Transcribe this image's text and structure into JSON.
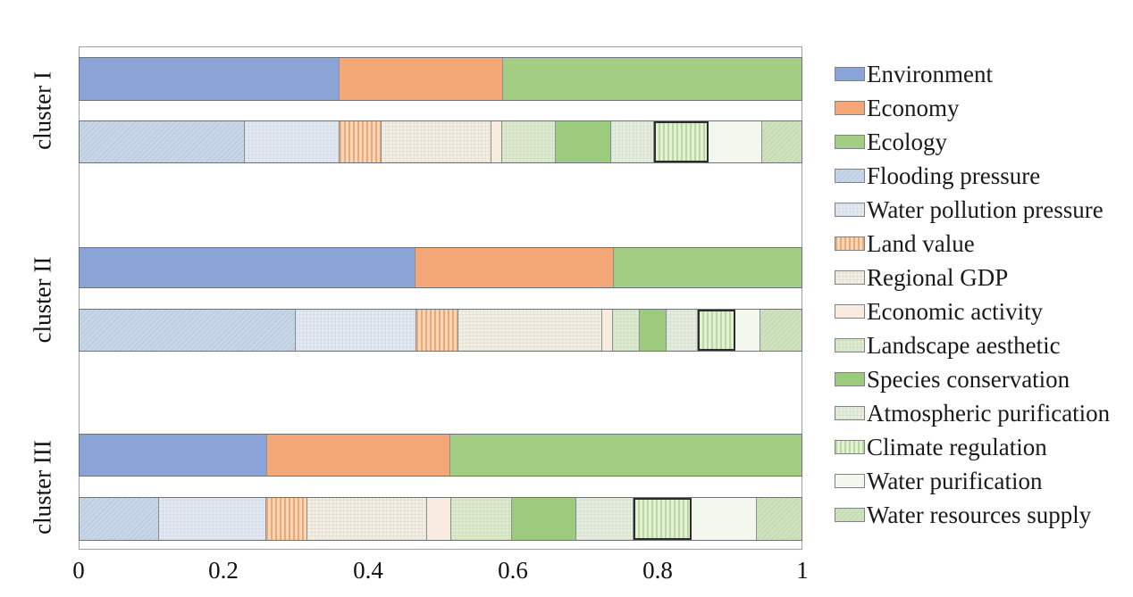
{
  "chart_data": {
    "type": "bar",
    "orientation": "horizontal",
    "stacked": true,
    "title": "",
    "xlabel": "",
    "ylabel": "",
    "xlim": [
      0,
      1
    ],
    "x_ticks": [
      "0",
      "0.2",
      "0.4",
      "0.6",
      "0.8",
      "1"
    ],
    "grid": false,
    "legend_position": "right",
    "legend": [
      {
        "key": "environment",
        "label": "Environment"
      },
      {
        "key": "economy",
        "label": "Economy"
      },
      {
        "key": "ecology",
        "label": "Ecology"
      },
      {
        "key": "flooding_pressure",
        "label": "Flooding pressure"
      },
      {
        "key": "water_pollution_pressure",
        "label": "Water pollution pressure"
      },
      {
        "key": "land_value",
        "label": "Land value"
      },
      {
        "key": "regional_gdp",
        "label": "Regional GDP"
      },
      {
        "key": "economic_activity",
        "label": "Economic activity"
      },
      {
        "key": "landscape_aesthetic",
        "label": "Landscape aesthetic"
      },
      {
        "key": "species_conservation",
        "label": "Species conservation"
      },
      {
        "key": "atmospheric_purification",
        "label": "Atmospheric purification"
      },
      {
        "key": "climate_regulation",
        "label": "Climate regulation"
      },
      {
        "key": "water_purification",
        "label": "Water purification"
      },
      {
        "key": "water_resources_supply",
        "label": "Water resources supply"
      }
    ],
    "styles": {
      "environment": {
        "fill": "#8ba4d7",
        "pattern": "solid"
      },
      "economy": {
        "fill": "#f4a878",
        "pattern": "solid"
      },
      "ecology": {
        "fill": "#a3cd83",
        "pattern": "solid"
      },
      "flooding_pressure": {
        "fill": "#c8d6e8",
        "pattern": "diag",
        "pattern_color": "#b7c9e0"
      },
      "water_pollution_pressure": {
        "fill": "#e5eaf1",
        "pattern": "grid",
        "pattern_color": "#d5ddea"
      },
      "land_value": {
        "fill": "#f9d6b6",
        "pattern": "vstripe",
        "pattern_color": "#eca879"
      },
      "regional_gdp": {
        "fill": "#f3f0e7",
        "pattern": "grid",
        "pattern_color": "#e6e1d2"
      },
      "economic_activity": {
        "fill": "#f9ebdf",
        "pattern": "solid"
      },
      "landscape_aesthetic": {
        "fill": "#dfead3",
        "pattern": "grid",
        "pattern_color": "#cfe0bf"
      },
      "species_conservation": {
        "fill": "#9ccb7e",
        "pattern": "solid"
      },
      "atmospheric_purification": {
        "fill": "#e7eee1",
        "pattern": "grid",
        "pattern_color": "#d7e3cf"
      },
      "climate_regulation": {
        "fill": "#e3f0d5",
        "pattern": "vstripe",
        "pattern_color": "#b8d89e",
        "highlighted": true
      },
      "water_purification": {
        "fill": "#f3f7ed",
        "pattern": "solid"
      },
      "water_resources_supply": {
        "fill": "#cfe1bf",
        "pattern": "diag",
        "pattern_color": "#c0d7ac"
      }
    },
    "clusters": [
      {
        "label": "cluster I",
        "dimension_bar": [
          {
            "key": "environment",
            "value": 0.36
          },
          {
            "key": "economy",
            "value": 0.227
          },
          {
            "key": "ecology",
            "value": 0.413
          }
        ],
        "indicator_bar": [
          {
            "key": "flooding_pressure",
            "value": 0.229
          },
          {
            "key": "water_pollution_pressure",
            "value": 0.131
          },
          {
            "key": "land_value",
            "value": 0.058
          },
          {
            "key": "regional_gdp",
            "value": 0.152
          },
          {
            "key": "economic_activity",
            "value": 0.016
          },
          {
            "key": "landscape_aesthetic",
            "value": 0.074
          },
          {
            "key": "species_conservation",
            "value": 0.077
          },
          {
            "key": "atmospheric_purification",
            "value": 0.059
          },
          {
            "key": "climate_regulation",
            "value": 0.075
          },
          {
            "key": "water_purification",
            "value": 0.075
          },
          {
            "key": "water_resources_supply",
            "value": 0.054
          }
        ]
      },
      {
        "label": "cluster II",
        "dimension_bar": [
          {
            "key": "environment",
            "value": 0.465
          },
          {
            "key": "economy",
            "value": 0.275
          },
          {
            "key": "ecology",
            "value": 0.26
          }
        ],
        "indicator_bar": [
          {
            "key": "flooding_pressure",
            "value": 0.299
          },
          {
            "key": "water_pollution_pressure",
            "value": 0.168
          },
          {
            "key": "land_value",
            "value": 0.058
          },
          {
            "key": "regional_gdp",
            "value": 0.199
          },
          {
            "key": "economic_activity",
            "value": 0.015
          },
          {
            "key": "landscape_aesthetic",
            "value": 0.037
          },
          {
            "key": "species_conservation",
            "value": 0.037
          },
          {
            "key": "atmospheric_purification",
            "value": 0.044
          },
          {
            "key": "climate_regulation",
            "value": 0.051
          },
          {
            "key": "water_purification",
            "value": 0.035
          },
          {
            "key": "water_resources_supply",
            "value": 0.057
          }
        ]
      },
      {
        "label": "cluster III",
        "dimension_bar": [
          {
            "key": "environment",
            "value": 0.26
          },
          {
            "key": "economy",
            "value": 0.253
          },
          {
            "key": "ecology",
            "value": 0.487
          }
        ],
        "indicator_bar": [
          {
            "key": "flooding_pressure",
            "value": 0.11
          },
          {
            "key": "water_pollution_pressure",
            "value": 0.149
          },
          {
            "key": "land_value",
            "value": 0.056
          },
          {
            "key": "regional_gdp",
            "value": 0.167
          },
          {
            "key": "economic_activity",
            "value": 0.033
          },
          {
            "key": "landscape_aesthetic",
            "value": 0.084
          },
          {
            "key": "species_conservation",
            "value": 0.089
          },
          {
            "key": "atmospheric_purification",
            "value": 0.079
          },
          {
            "key": "climate_regulation",
            "value": 0.081
          },
          {
            "key": "water_purification",
            "value": 0.09
          },
          {
            "key": "water_resources_supply",
            "value": 0.062
          }
        ]
      }
    ]
  }
}
